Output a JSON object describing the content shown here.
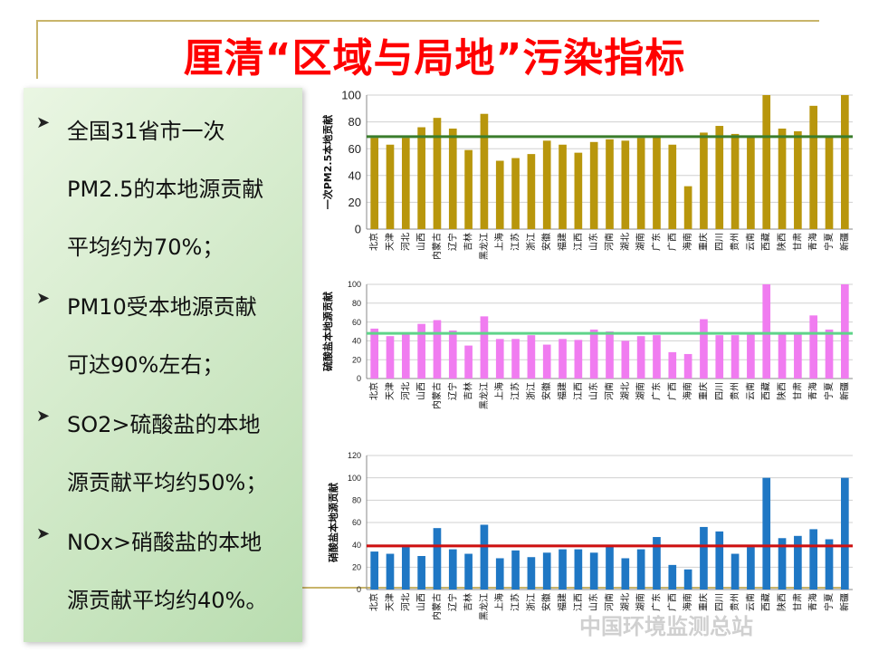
{
  "title": "厘清“区域与局地”污染指标",
  "bullets": [
    {
      "lines": [
        "全国31省市一次",
        "PM2.5的本地源贡献",
        "平均约为70%；"
      ]
    },
    {
      "lines": [
        "PM10受本地源贡献",
        "可达90%左右；"
      ]
    },
    {
      "lines": [
        "SO2>硫酸盐的本地",
        "源贡献平均约50%；"
      ]
    },
    {
      "lines": [
        "NOx>硝酸盐的本地",
        "源贡献平均约40%。"
      ]
    }
  ],
  "watermark": "中国环境监测总站",
  "colors": {
    "title": "#ff0000",
    "panel": "#cfe8c6"
  },
  "chart_data": [
    {
      "type": "bar",
      "ylabel": "一次PM2.5本地贡献",
      "ylim": [
        0,
        100
      ],
      "yticks": [
        0,
        20,
        40,
        60,
        80,
        100
      ],
      "categories": [
        "北京",
        "天津",
        "河北",
        "山西",
        "内蒙古",
        "辽宁",
        "吉林",
        "黑龙江",
        "上海",
        "江苏",
        "浙江",
        "安徽",
        "福建",
        "江西",
        "山东",
        "河南",
        "湖北",
        "湖南",
        "广东",
        "广西",
        "海南",
        "重庆",
        "四川",
        "贵州",
        "云南",
        "西藏",
        "陕西",
        "甘肃",
        "青海",
        "宁夏",
        "新疆"
      ],
      "values": [
        68,
        63,
        68,
        76,
        83,
        75,
        59,
        86,
        51,
        53,
        56,
        66,
        63,
        57,
        65,
        67,
        66,
        68,
        69,
        63,
        32,
        72,
        77,
        71,
        69,
        100,
        75,
        73,
        92,
        69,
        100
      ],
      "reference_line": 69,
      "bar_color": "#b8960c",
      "line_color": "#3a7d2c"
    },
    {
      "type": "bar",
      "ylabel": "硫酸盐本地源贡献",
      "ylim": [
        0,
        100
      ],
      "yticks": [
        0,
        20,
        40,
        60,
        80,
        100
      ],
      "categories": [
        "北京",
        "天津",
        "河北",
        "山西",
        "内蒙古",
        "辽宁",
        "吉林",
        "黑龙江",
        "上海",
        "江苏",
        "浙江",
        "安徽",
        "福建",
        "江西",
        "山东",
        "河南",
        "湖北",
        "湖南",
        "广东",
        "广西",
        "海南",
        "重庆",
        "四川",
        "贵州",
        "云南",
        "西藏",
        "陕西",
        "甘肃",
        "青海",
        "宁夏",
        "新疆"
      ],
      "values": [
        53,
        45,
        47,
        58,
        62,
        51,
        35,
        66,
        42,
        42,
        46,
        36,
        42,
        41,
        52,
        50,
        40,
        45,
        46,
        28,
        26,
        63,
        46,
        46,
        47,
        100,
        47,
        48,
        67,
        52,
        100
      ],
      "reference_line": 48,
      "bar_color": "#f07cf0",
      "line_color": "#5fd48a"
    },
    {
      "type": "bar",
      "ylabel": "硝酸盐本地源贡献",
      "ylim": [
        0,
        120
      ],
      "yticks": [
        0,
        20,
        40,
        60,
        80,
        100,
        120
      ],
      "categories": [
        "北京",
        "天津",
        "河北",
        "山西",
        "内蒙古",
        "辽宁",
        "吉林",
        "黑龙江",
        "上海",
        "江苏",
        "浙江",
        "安徽",
        "福建",
        "江西",
        "山东",
        "河南",
        "湖北",
        "湖南",
        "广东",
        "广西",
        "海南",
        "重庆",
        "四川",
        "贵州",
        "云南",
        "西藏",
        "陕西",
        "甘肃",
        "青海",
        "宁夏",
        "新疆"
      ],
      "values": [
        34,
        32,
        38,
        30,
        55,
        36,
        32,
        58,
        28,
        35,
        29,
        33,
        36,
        36,
        33,
        40,
        28,
        36,
        47,
        22,
        18,
        56,
        52,
        32,
        38,
        100,
        46,
        48,
        54,
        45,
        100
      ],
      "reference_line": 39,
      "bar_color": "#1f77c4",
      "line_color": "#d01010"
    }
  ]
}
